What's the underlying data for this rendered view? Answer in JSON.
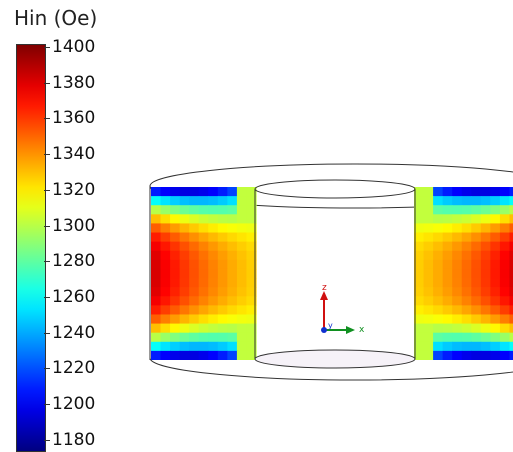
{
  "colorbar": {
    "title": "Hin (Oe)",
    "min": 1170,
    "max": 1400,
    "ticks": [
      "1400",
      "1380",
      "1360",
      "1340",
      "1320",
      "1300",
      "1280",
      "1260",
      "1240",
      "1220",
      "1200",
      "1180"
    ],
    "colormap": "jet"
  },
  "axes_triad": {
    "z_label": "z",
    "y_label": "y",
    "x_label": "x",
    "z_color": "#d01010",
    "y_color": "#1030d0",
    "x_color": "#109020"
  }
}
